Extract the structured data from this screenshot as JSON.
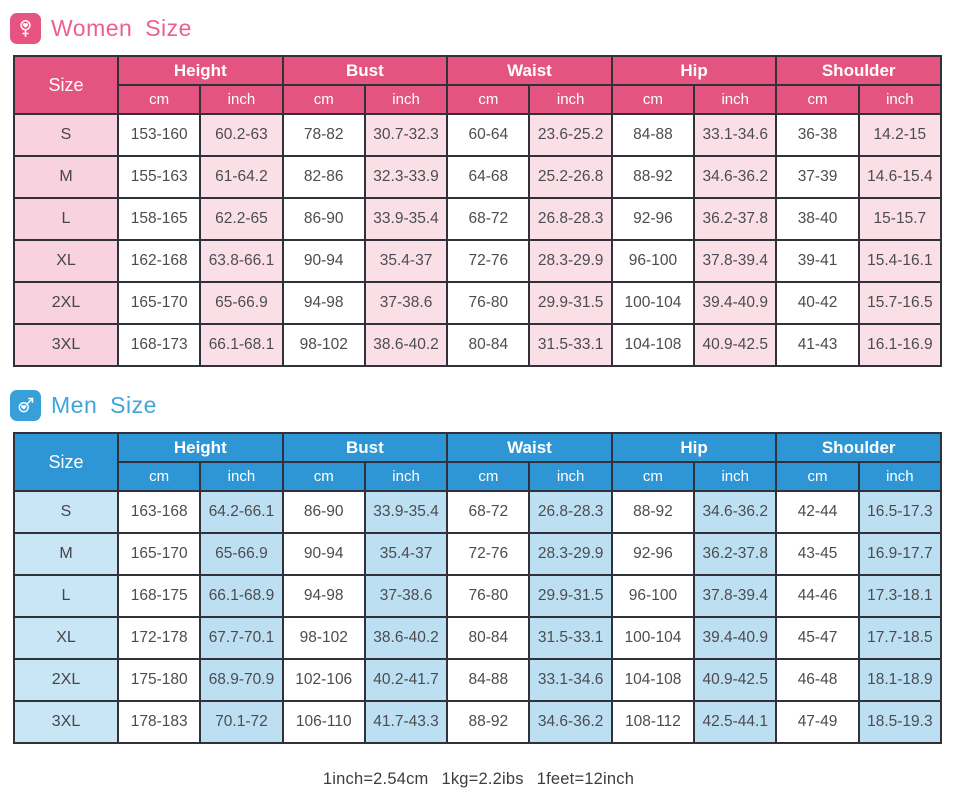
{
  "page": {
    "background": "#ffffff",
    "note_parts": [
      "1inch=2.54cm",
      "1kg=2.2ibs",
      "1feet=12inch"
    ],
    "border_color": "#31313b"
  },
  "chart_data": [
    {
      "type": "table",
      "title": "Women Size",
      "icon": "female-symbol-icon",
      "size_header": "Size",
      "groups": [
        "Height",
        "Bust",
        "Waist",
        "Hip",
        "Shoulder"
      ],
      "units": [
        "cm",
        "inch"
      ],
      "colors": {
        "header_bg": "#e35480",
        "title": "#ec6090",
        "badge_bg": "#e85481",
        "size_tint": "#f8d2de",
        "cell_tint": "#fbdfe6"
      },
      "rows": [
        {
          "size": "S",
          "values": [
            "153-160",
            "60.2-63",
            "78-82",
            "30.7-32.3",
            "60-64",
            "23.6-25.2",
            "84-88",
            "33.1-34.6",
            "36-38",
            "14.2-15"
          ]
        },
        {
          "size": "M",
          "values": [
            "155-163",
            "61-64.2",
            "82-86",
            "32.3-33.9",
            "64-68",
            "25.2-26.8",
            "88-92",
            "34.6-36.2",
            "37-39",
            "14.6-15.4"
          ]
        },
        {
          "size": "L",
          "values": [
            "158-165",
            "62.2-65",
            "86-90",
            "33.9-35.4",
            "68-72",
            "26.8-28.3",
            "92-96",
            "36.2-37.8",
            "38-40",
            "15-15.7"
          ]
        },
        {
          "size": "XL",
          "values": [
            "162-168",
            "63.8-66.1",
            "90-94",
            "35.4-37",
            "72-76",
            "28.3-29.9",
            "96-100",
            "37.8-39.4",
            "39-41",
            "15.4-16.1"
          ]
        },
        {
          "size": "2XL",
          "values": [
            "165-170",
            "65-66.9",
            "94-98",
            "37-38.6",
            "76-80",
            "29.9-31.5",
            "100-104",
            "39.4-40.9",
            "40-42",
            "15.7-16.5"
          ]
        },
        {
          "size": "3XL",
          "values": [
            "168-173",
            "66.1-68.1",
            "98-102",
            "38.6-40.2",
            "80-84",
            "31.5-33.1",
            "104-108",
            "40.9-42.5",
            "41-43",
            "16.1-16.9"
          ]
        }
      ]
    },
    {
      "type": "table",
      "title": "Men Size",
      "icon": "male-symbol-icon",
      "size_header": "Size",
      "groups": [
        "Height",
        "Bust",
        "Waist",
        "Hip",
        "Shoulder"
      ],
      "units": [
        "cm",
        "inch"
      ],
      "colors": {
        "header_bg": "#2e96d4",
        "title": "#3fa6db",
        "badge_bg": "#389fd8",
        "size_tint": "#c9e6f6",
        "cell_tint": "#bddff2"
      },
      "rows": [
        {
          "size": "S",
          "values": [
            "163-168",
            "64.2-66.1",
            "86-90",
            "33.9-35.4",
            "68-72",
            "26.8-28.3",
            "88-92",
            "34.6-36.2",
            "42-44",
            "16.5-17.3"
          ]
        },
        {
          "size": "M",
          "values": [
            "165-170",
            "65-66.9",
            "90-94",
            "35.4-37",
            "72-76",
            "28.3-29.9",
            "92-96",
            "36.2-37.8",
            "43-45",
            "16.9-17.7"
          ]
        },
        {
          "size": "L",
          "values": [
            "168-175",
            "66.1-68.9",
            "94-98",
            "37-38.6",
            "76-80",
            "29.9-31.5",
            "96-100",
            "37.8-39.4",
            "44-46",
            "17.3-18.1"
          ]
        },
        {
          "size": "XL",
          "values": [
            "172-178",
            "67.7-70.1",
            "98-102",
            "38.6-40.2",
            "80-84",
            "31.5-33.1",
            "100-104",
            "39.4-40.9",
            "45-47",
            "17.7-18.5"
          ]
        },
        {
          "size": "2XL",
          "values": [
            "175-180",
            "68.9-70.9",
            "102-106",
            "40.2-41.7",
            "84-88",
            "33.1-34.6",
            "104-108",
            "40.9-42.5",
            "46-48",
            "18.1-18.9"
          ]
        },
        {
          "size": "3XL",
          "values": [
            "178-183",
            "70.1-72",
            "106-110",
            "41.7-43.3",
            "88-92",
            "34.6-36.2",
            "108-112",
            "42.5-44.1",
            "47-49",
            "18.5-19.3"
          ]
        }
      ]
    }
  ]
}
